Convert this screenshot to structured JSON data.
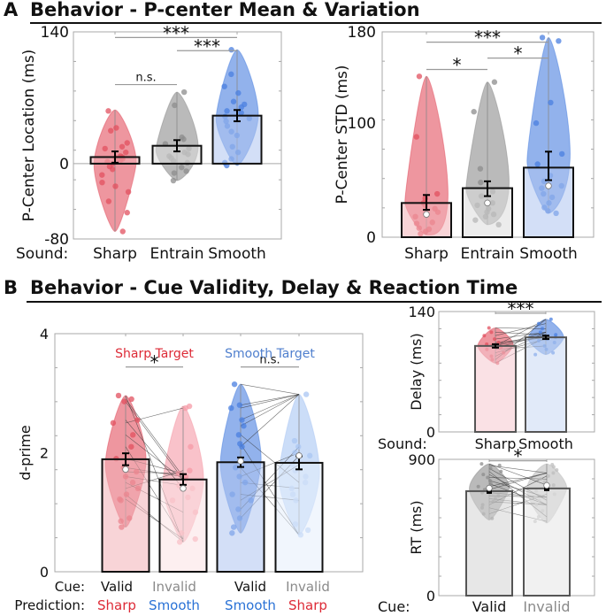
{
  "sections": [
    {
      "letter": "A",
      "title": "Behavior -  P-center Mean & Variation"
    },
    {
      "letter": "B",
      "title": "Behavior - Cue Validity, Delay & Reaction Time"
    }
  ],
  "chart_data": [
    {
      "id": "pcenter-location",
      "type": "bar",
      "title": "",
      "xlabel": "",
      "row_label": "Sound:",
      "ylabel": "P-Center Location (ms)",
      "ylim": [
        -80,
        140
      ],
      "yticks": [
        140,
        0,
        -80
      ],
      "categories": [
        "Sharp",
        "Entrain",
        "Smooth"
      ],
      "values": [
        7,
        19,
        51
      ],
      "error": [
        [
          1,
          13
        ],
        [
          13,
          25
        ],
        [
          45,
          57
        ]
      ],
      "colors": [
        "#e2505f",
        "#8c8c8c",
        "#4a7fe0"
      ],
      "violin_range": [
        [
          -72,
          57
        ],
        [
          -18,
          76
        ],
        [
          -2,
          121
        ]
      ],
      "points": [
        [
          56,
          38,
          35,
          22,
          18,
          16,
          12,
          8,
          7,
          6,
          5,
          3,
          2,
          0,
          -3,
          -6,
          -12,
          -20,
          -24,
          -30,
          -40,
          -52,
          -72
        ],
        [
          76,
          62,
          28,
          26,
          21,
          16,
          12,
          10,
          8,
          6,
          3,
          1,
          -4,
          -8,
          -10,
          -18
        ],
        [
          121,
          95,
          82,
          75,
          66,
          63,
          60,
          56,
          54,
          50,
          48,
          45,
          40,
          34,
          30,
          18,
          12,
          5,
          1,
          -2
        ]
      ],
      "significance": [
        {
          "pair": [
            "Sharp",
            "Entrain"
          ],
          "label": "n.s."
        },
        {
          "pair": [
            "Sharp",
            "Smooth"
          ],
          "label": "***"
        },
        {
          "pair": [
            "Entrain",
            "Smooth"
          ],
          "label": "***"
        }
      ]
    },
    {
      "id": "pcenter-std",
      "type": "bar",
      "title": "",
      "xlabel": "",
      "ylabel": "P-Center STD (ms)",
      "ylim": [
        0,
        180
      ],
      "yticks": [
        180,
        100,
        0
      ],
      "categories": [
        "Sharp",
        "Entrain",
        "Smooth"
      ],
      "values": [
        30,
        43,
        61
      ],
      "medians": [
        20,
        30,
        45
      ],
      "error": [
        [
          24,
          37
        ],
        [
          36,
          49
        ],
        [
          50,
          75
        ]
      ],
      "colors": [
        "#e2505f",
        "#8c8c8c",
        "#4a7fe0"
      ],
      "violin_range": [
        [
          2,
          141
        ],
        [
          11,
          136
        ],
        [
          21,
          175
        ]
      ],
      "points": [
        [
          141,
          88,
          38,
          34,
          30,
          28,
          25,
          22,
          18,
          13,
          12,
          8,
          7,
          5,
          3
        ],
        [
          136,
          110,
          60,
          48,
          40,
          36,
          30,
          28,
          25,
          22,
          20,
          18,
          15,
          11
        ],
        [
          175,
          172,
          118,
          100,
          73,
          64,
          54,
          49,
          45,
          43,
          38,
          35,
          30,
          26,
          23,
          21
        ]
      ],
      "significance": [
        {
          "pair": [
            "Sharp",
            "Entrain"
          ],
          "label": "*"
        },
        {
          "pair": [
            "Sharp",
            "Smooth"
          ],
          "label": "***"
        },
        {
          "pair": [
            "Entrain",
            "Smooth"
          ],
          "label": "*"
        }
      ]
    },
    {
      "id": "dprime",
      "type": "bar",
      "title": "",
      "xlabel": "",
      "ylabel": "d-prime",
      "ylim": [
        0,
        4
      ],
      "yticks": [
        4,
        2,
        0
      ],
      "group_labels": [
        {
          "text": "Sharp Target",
          "color": "#dd2a36"
        },
        {
          "text": "Smooth Target",
          "color": "#4f7fce"
        }
      ],
      "row1_label": "Cue:",
      "row2_label": "Prediction:",
      "categories": [
        {
          "cue": "Valid",
          "prediction": "Sharp",
          "cue_color": "#111111",
          "prediction_color": "#dd2a36"
        },
        {
          "cue": "Invalid",
          "prediction": "Smooth",
          "cue_color": "#8a8a8a",
          "prediction_color": "#2a72d6"
        },
        {
          "cue": "Valid",
          "prediction": "Smooth",
          "cue_color": "#111111",
          "prediction_color": "#2a72d6"
        },
        {
          "cue": "Invalid",
          "prediction": "Sharp",
          "cue_color": "#8a8a8a",
          "prediction_color": "#dd2a36"
        }
      ],
      "values": [
        1.89,
        1.55,
        1.84,
        1.83
      ],
      "medians": [
        1.72,
        1.4,
        1.86,
        1.95
      ],
      "error": [
        [
          1.79,
          1.99
        ],
        [
          1.46,
          1.64
        ],
        [
          1.76,
          1.92
        ],
        [
          1.72,
          1.94
        ]
      ],
      "colors": [
        "#e2505f",
        "#f59aa6",
        "#4a7fe0",
        "#a9c6f3"
      ],
      "violin_range": [
        [
          0.75,
          2.96
        ],
        [
          0.5,
          2.78
        ],
        [
          0.65,
          3.15
        ],
        [
          0.62,
          2.98
        ]
      ],
      "points": [
        [
          2.96,
          2.9,
          2.86,
          2.55,
          2.5,
          2.3,
          2.1,
          1.9,
          1.75,
          1.68,
          1.6,
          1.5,
          1.4,
          1.3,
          1.22,
          1.2,
          0.9,
          0.85,
          0.75
        ],
        [
          2.78,
          2.75,
          2.1,
          1.7,
          1.65,
          1.6,
          1.55,
          1.45,
          1.4,
          1.25,
          1.2,
          1.0,
          0.65,
          0.55,
          0.5
        ],
        [
          3.15,
          2.8,
          2.75,
          2.55,
          2.45,
          2.3,
          2.15,
          2.1,
          1.75,
          1.6,
          1.5,
          1.3,
          1.2,
          1.05,
          0.9,
          0.75,
          0.65
        ],
        [
          2.98,
          2.2,
          2.1,
          2.0,
          1.95,
          1.8,
          1.7,
          1.6,
          1.5,
          1.4,
          1.3,
          1.2,
          0.8,
          0.7,
          0.62
        ]
      ],
      "pairs": [
        [
          0,
          1
        ],
        [
          2,
          3
        ]
      ],
      "significance": [
        {
          "pair": [
            0,
            1
          ],
          "label": "*"
        },
        {
          "pair": [
            2,
            3
          ],
          "label": "n.s."
        }
      ]
    },
    {
      "id": "delay",
      "type": "bar",
      "title": "",
      "xlabel": "",
      "row_label": "Sound:",
      "ylabel": "Delay (ms)",
      "ylim": [
        0,
        140
      ],
      "yticks": [
        140,
        0
      ],
      "categories": [
        "Sharp",
        "Smooth"
      ],
      "values": [
        100,
        110
      ],
      "error": [
        [
          98,
          102
        ],
        [
          108,
          112
        ]
      ],
      "colors": [
        "#e2505f",
        "#4a7fe0"
      ],
      "bar_fill": [
        "#f6c8cf",
        "#c8d9f4"
      ],
      "violin_range": [
        [
          80,
          121
        ],
        [
          90,
          131
        ]
      ],
      "points": [
        [
          121,
          116,
          112,
          108,
          104,
          102,
          100,
          100,
          98,
          96,
          92,
          88,
          84,
          80
        ],
        [
          131,
          126,
          120,
          116,
          113,
          110,
          110,
          108,
          106,
          104,
          100,
          96,
          92,
          90
        ]
      ],
      "significance": [
        {
          "pair": [
            "Sharp",
            "Smooth"
          ],
          "label": "***"
        }
      ]
    },
    {
      "id": "rt",
      "type": "bar",
      "title": "",
      "xlabel": "",
      "row_label": "Cue:",
      "ylabel": "RT (ms)",
      "ylim": [
        0,
        900
      ],
      "yticks": [
        900,
        0
      ],
      "categories": [
        "Valid",
        "Invalid"
      ],
      "category_colors": [
        "#111111",
        "#8a8a8a"
      ],
      "values": [
        690,
        708
      ],
      "medians": [
        710,
        728
      ],
      "colors": [
        "#8c8c8c",
        "#bdbdbd"
      ],
      "bar_fill": [
        "#d3d3d3",
        "#e6e6e6"
      ],
      "violin_range": [
        [
          500,
          870
        ],
        [
          480,
          870
        ]
      ],
      "points": [
        [
          870,
          860,
          840,
          820,
          800,
          780,
          760,
          740,
          720,
          700,
          680,
          660,
          640,
          620,
          600,
          580,
          540,
          510
        ],
        [
          865,
          850,
          830,
          810,
          790,
          770,
          750,
          730,
          710,
          690,
          670,
          650,
          630,
          600,
          560,
          520,
          490
        ]
      ],
      "significance": [
        {
          "pair": [
            "Valid",
            "Invalid"
          ],
          "label": "*"
        }
      ]
    }
  ]
}
